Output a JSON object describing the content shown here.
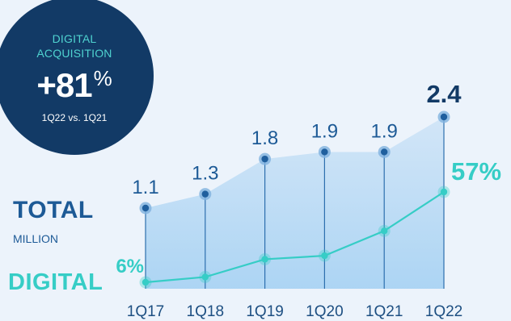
{
  "badge": {
    "line1": "DIGITAL",
    "line2": "ACQUISITION",
    "value": "+81",
    "unit": "%",
    "note": "1Q22 vs. 1Q21"
  },
  "labels": {
    "total": "TOTAL",
    "total_unit": "MILLION",
    "digital": "DIGITAL"
  },
  "colors": {
    "navy": "#123a66",
    "total_blue": "#1d5a96",
    "digital_teal": "#36cdc6"
  },
  "chart_data": {
    "type": "line",
    "categories": [
      "1Q17",
      "1Q18",
      "1Q19",
      "1Q20",
      "1Q21",
      "1Q22"
    ],
    "series": [
      {
        "name": "TOTAL",
        "values": [
          1.1,
          1.3,
          1.8,
          1.9,
          1.9,
          2.4
        ],
        "value_labels": [
          "1.1",
          "1.3",
          "1.8",
          "1.9",
          "1.9",
          "2.4"
        ]
      },
      {
        "name": "DIGITAL",
        "values": [
          6,
          9,
          19,
          21,
          35,
          57
        ],
        "value_labels": [
          "6%",
          "",
          "",
          "",
          "",
          "57%"
        ]
      }
    ],
    "grid": false,
    "legend": "left"
  }
}
